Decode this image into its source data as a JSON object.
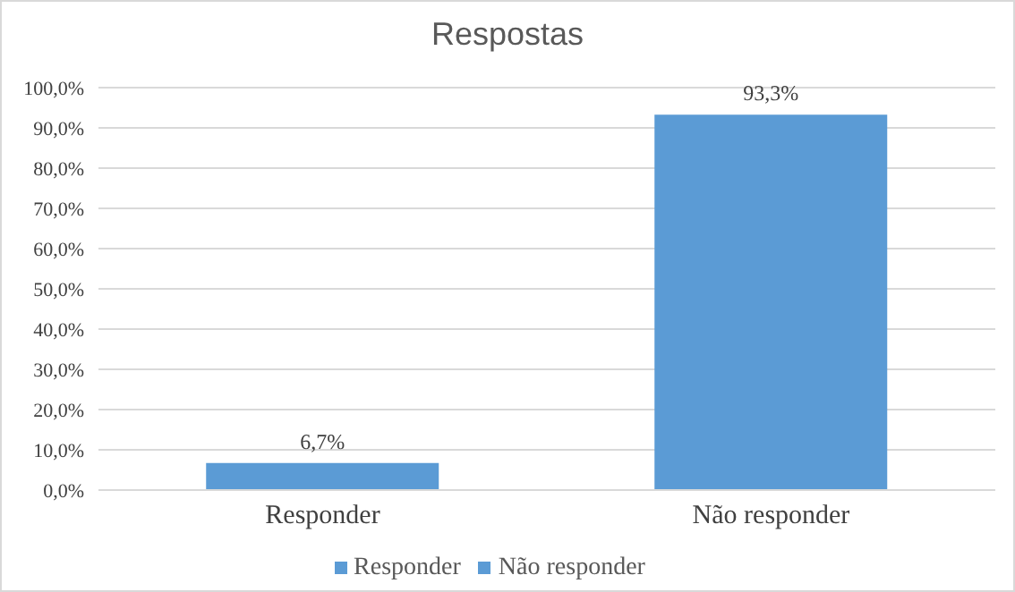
{
  "chart_data": {
    "type": "bar",
    "title": "Respostas",
    "categories": [
      "Responder",
      "Não responder"
    ],
    "stacked": true,
    "series": [
      {
        "name": "Responder",
        "color": "#5b9bd5",
        "values": [
          6.7,
          null
        ],
        "value_labels": [
          "6,7%",
          null
        ]
      },
      {
        "name": "Não responder",
        "color": "#5b9bd5",
        "values": [
          null,
          93.3
        ],
        "value_labels": [
          null,
          "93,3%"
        ]
      }
    ],
    "ylim": [
      0,
      100
    ],
    "yticks": [
      {
        "value": 0,
        "label": "0,0%"
      },
      {
        "value": 10,
        "label": "10,0%"
      },
      {
        "value": 20,
        "label": "20,0%"
      },
      {
        "value": 30,
        "label": "30,0%"
      },
      {
        "value": 40,
        "label": "40,0%"
      },
      {
        "value": 50,
        "label": "50,0%"
      },
      {
        "value": 60,
        "label": "60,0%"
      },
      {
        "value": 70,
        "label": "70,0%"
      },
      {
        "value": 80,
        "label": "80,0%"
      },
      {
        "value": 90,
        "label": "90,0%"
      },
      {
        "value": 100,
        "label": "100,0%"
      }
    ],
    "grid": "y",
    "legend": "bottom"
  }
}
